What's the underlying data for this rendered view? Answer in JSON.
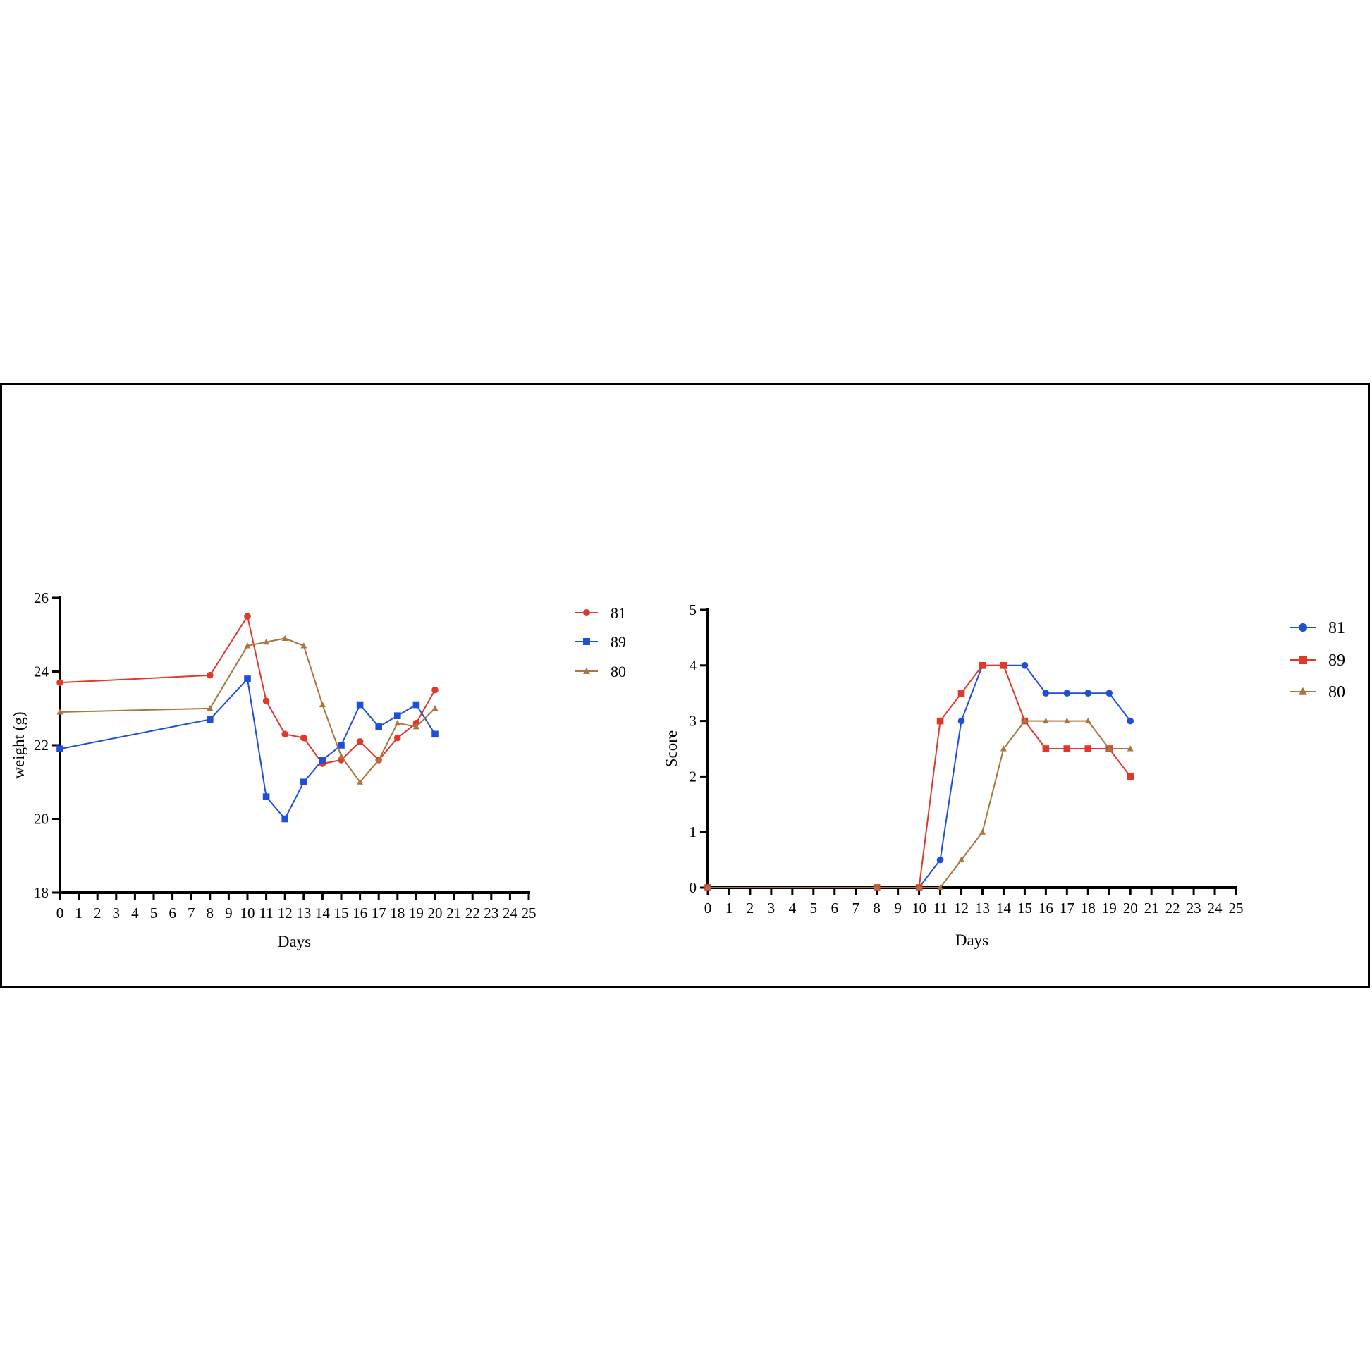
{
  "colors": {
    "red": "#e0392b",
    "blue": "#1f4fd8",
    "brown": "#a8763e"
  },
  "chart_data": [
    {
      "type": "line",
      "xlabel": "Days",
      "ylabel": "weight (g)",
      "xlim": [
        0,
        25
      ],
      "ylim": [
        18,
        26
      ],
      "xticks": [
        0,
        1,
        2,
        3,
        4,
        5,
        6,
        7,
        8,
        9,
        10,
        11,
        12,
        13,
        14,
        15,
        16,
        17,
        18,
        19,
        20,
        21,
        22,
        23,
        24,
        25
      ],
      "yticks": [
        18,
        20,
        22,
        24,
        26
      ],
      "series": [
        {
          "name": "81",
          "color": "#e0392b",
          "marker": "circle",
          "points": [
            [
              0,
              23.7
            ],
            [
              8,
              23.9
            ],
            [
              10,
              25.5
            ],
            [
              11,
              23.2
            ],
            [
              12,
              22.3
            ],
            [
              13,
              22.2
            ],
            [
              14,
              21.5
            ],
            [
              15,
              21.6
            ],
            [
              16,
              22.1
            ],
            [
              17,
              21.6
            ],
            [
              18,
              22.2
            ],
            [
              19,
              22.6
            ],
            [
              20,
              23.5
            ]
          ]
        },
        {
          "name": "89",
          "color": "#1f4fd8",
          "marker": "square",
          "points": [
            [
              0,
              21.9
            ],
            [
              8,
              22.7
            ],
            [
              10,
              23.8
            ],
            [
              11,
              20.6
            ],
            [
              12,
              20.0
            ],
            [
              13,
              21.0
            ],
            [
              14,
              21.6
            ],
            [
              15,
              22.0
            ],
            [
              16,
              23.1
            ],
            [
              17,
              22.5
            ],
            [
              18,
              22.8
            ],
            [
              19,
              23.1
            ],
            [
              20,
              22.3
            ]
          ]
        },
        {
          "name": "80",
          "color": "#a8763e",
          "marker": "triangle",
          "points": [
            [
              0,
              22.9
            ],
            [
              8,
              23.0
            ],
            [
              10,
              24.7
            ],
            [
              11,
              24.8
            ],
            [
              12,
              24.9
            ],
            [
              13,
              24.7
            ],
            [
              14,
              23.1
            ],
            [
              15,
              21.7
            ],
            [
              16,
              21.0
            ],
            [
              17,
              21.6
            ],
            [
              18,
              22.6
            ],
            [
              19,
              22.5
            ],
            [
              20,
              23.0
            ]
          ]
        }
      ]
    },
    {
      "type": "line",
      "xlabel": "Days",
      "ylabel": "Score",
      "xlim": [
        0,
        25
      ],
      "ylim": [
        0,
        5
      ],
      "xticks": [
        0,
        1,
        2,
        3,
        4,
        5,
        6,
        7,
        8,
        9,
        10,
        11,
        12,
        13,
        14,
        15,
        16,
        17,
        18,
        19,
        20,
        21,
        22,
        23,
        24,
        25
      ],
      "yticks": [
        0,
        1,
        2,
        3,
        4,
        5
      ],
      "series": [
        {
          "name": "81",
          "color": "#1f4fd8",
          "marker": "circle",
          "points": [
            [
              0,
              0
            ],
            [
              8,
              0
            ],
            [
              10,
              0
            ],
            [
              11,
              0.5
            ],
            [
              12,
              3
            ],
            [
              13,
              4
            ],
            [
              14,
              4
            ],
            [
              15,
              4
            ],
            [
              16,
              3.5
            ],
            [
              17,
              3.5
            ],
            [
              18,
              3.5
            ],
            [
              19,
              3.5
            ],
            [
              20,
              3
            ]
          ]
        },
        {
          "name": "89",
          "color": "#e0392b",
          "marker": "square",
          "points": [
            [
              0,
              0
            ],
            [
              8,
              0
            ],
            [
              10,
              0
            ],
            [
              11,
              3
            ],
            [
              12,
              3.5
            ],
            [
              13,
              4
            ],
            [
              14,
              4
            ],
            [
              15,
              3
            ],
            [
              16,
              2.5
            ],
            [
              17,
              2.5
            ],
            [
              18,
              2.5
            ],
            [
              19,
              2.5
            ],
            [
              20,
              2
            ]
          ]
        },
        {
          "name": "80",
          "color": "#a8763e",
          "marker": "triangle",
          "points": [
            [
              0,
              0
            ],
            [
              8,
              0
            ],
            [
              10,
              0
            ],
            [
              11,
              0
            ],
            [
              12,
              0.5
            ],
            [
              13,
              1
            ],
            [
              14,
              2.5
            ],
            [
              15,
              3
            ],
            [
              16,
              3
            ],
            [
              17,
              3
            ],
            [
              18,
              3
            ],
            [
              19,
              2.5
            ],
            [
              20,
              2.5
            ]
          ]
        }
      ]
    }
  ]
}
